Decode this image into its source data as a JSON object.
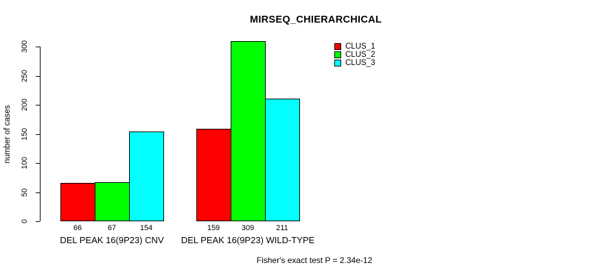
{
  "title": "MIRSEQ_CHIERARCHICAL",
  "footer": "Fisher's exact test P = 2.34e-12",
  "colors": {
    "background": "#ffffff",
    "axis": "#000000",
    "text": "#000000",
    "clus_1": "#ff0000",
    "clus_2": "#00ff00",
    "clus_3": "#00ffff"
  },
  "chart_data": {
    "type": "bar",
    "title": "MIRSEQ_CHIERARCHICAL",
    "xlabel": "",
    "ylabel": "number of cases",
    "ylim": [
      0,
      300
    ],
    "yticks": [
      0,
      50,
      100,
      150,
      200,
      250,
      300
    ],
    "grid": false,
    "legend_position": "top-right",
    "categories": [
      "DEL PEAK 16(9P23) CNV",
      "DEL PEAK 16(9P23) WILD-TYPE"
    ],
    "series": [
      {
        "name": "CLUS_1",
        "color": "#ff0000",
        "values": [
          66,
          159
        ]
      },
      {
        "name": "CLUS_2",
        "color": "#00ff00",
        "values": [
          67,
          309
        ]
      },
      {
        "name": "CLUS_3",
        "color": "#00ffff",
        "values": [
          154,
          211
        ]
      }
    ],
    "bar_value_labels": [
      [
        66,
        67,
        154
      ],
      [
        159,
        309,
        211
      ]
    ],
    "annotation": "Fisher's exact test P = 2.34e-12"
  }
}
